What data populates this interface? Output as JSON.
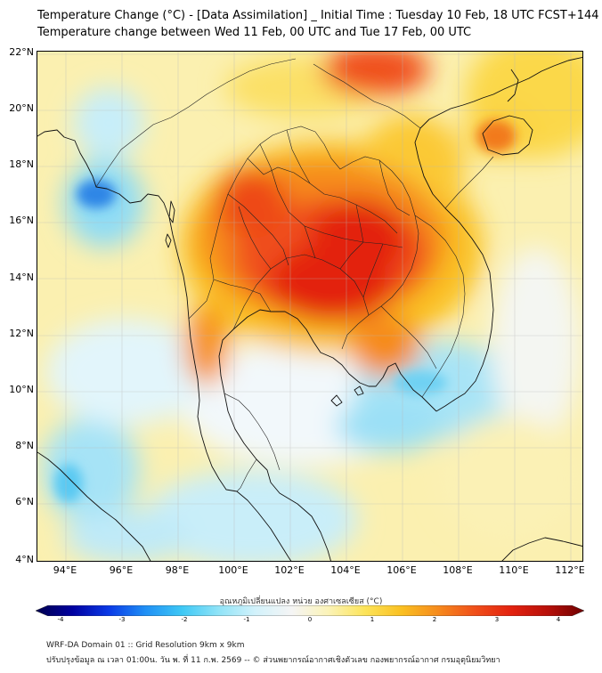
{
  "header": {
    "title_line1": "Temperature Change (°C) - [Data Assimilation] _ Initial Time : Tuesday 10 Feb, 18 UTC FCST+144",
    "title_line2": "Temperature change between Wed 11 Feb, 00 UTC and Tue 17 Feb, 00 UTC"
  },
  "map": {
    "lat_labels": [
      "22°N",
      "20°N",
      "18°N",
      "16°N",
      "14°N",
      "12°N",
      "10°N",
      "8°N",
      "6°N",
      "4°N"
    ],
    "lon_labels": [
      "94°E",
      "96°E",
      "98°E",
      "100°E",
      "102°E",
      "104°E",
      "106°E",
      "108°E",
      "110°E",
      "112°E"
    ],
    "lat_range": [
      4,
      22.2
    ],
    "lon_range": [
      93,
      112.5
    ]
  },
  "colorbar": {
    "label": "อุณหภูมิเปลี่ยนแปลง หน่วย องศาเซลเซียส (°C)",
    "ticks": [
      "-4",
      "-3",
      "-2",
      "-1",
      "0",
      "1",
      "2",
      "3",
      "4"
    ],
    "colors": [
      "#00004d",
      "#0000a0",
      "#0a39e6",
      "#1f8ff5",
      "#3ec8f5",
      "#8fe3f7",
      "#d2f2fb",
      "#f5f5f5",
      "#fbf3b8",
      "#fce45a",
      "#fac021",
      "#f68b1d",
      "#f0501a",
      "#e3220f",
      "#b8100a",
      "#6e0000"
    ]
  },
  "footer": {
    "line1": "WRF-DA Domain 01 :: Grid Resolution 9km x 9km",
    "line2": "ปรับปรุงข้อมูล ณ เวลา 01:00น. วัน พ. ที่ 11 ก.พ. 2569 -- © ส่วนพยากรณ์อากาศเชิงตัวเลข กองพยากรณ์อากาศ กรมอุตุนิยมวิทยา"
  }
}
